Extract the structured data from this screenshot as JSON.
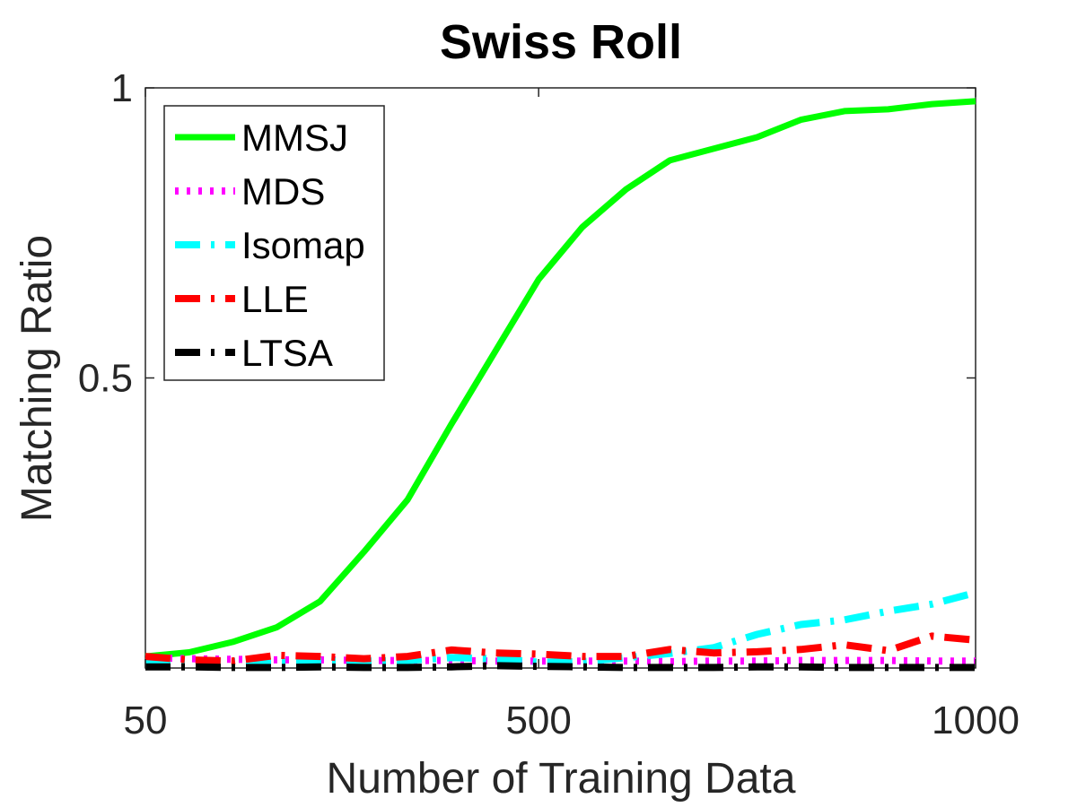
{
  "chart_data": {
    "type": "line",
    "title": "Swiss Roll",
    "xlabel": "Number of Training Data",
    "ylabel": "Matching Ratio",
    "xlim": [
      50,
      1000
    ],
    "ylim": [
      0,
      1
    ],
    "xticks": [
      50,
      500,
      1000
    ],
    "xtick_labels": [
      "50",
      "500",
      "1000"
    ],
    "yticks": [
      0.5,
      1
    ],
    "ytick_labels": [
      "0.5",
      "1"
    ],
    "legend_position": "top-left",
    "x": [
      50,
      100,
      150,
      200,
      250,
      300,
      350,
      400,
      450,
      500,
      550,
      600,
      650,
      700,
      750,
      800,
      850,
      900,
      950,
      1000
    ],
    "series": [
      {
        "name": "MMSJ",
        "color": "#00ff00",
        "style": "solid",
        "values": [
          0.02,
          0.027,
          0.045,
          0.07,
          0.115,
          0.2,
          0.29,
          0.42,
          0.545,
          0.67,
          0.76,
          0.825,
          0.875,
          0.895,
          0.915,
          0.945,
          0.96,
          0.963,
          0.972,
          0.977
        ]
      },
      {
        "name": "MDS",
        "color": "#ff00ff",
        "style": "dotted",
        "values": [
          0.018,
          0.016,
          0.015,
          0.014,
          0.014,
          0.013,
          0.013,
          0.013,
          0.012,
          0.012,
          0.012,
          0.012,
          0.011,
          0.012,
          0.012,
          0.013,
          0.013,
          0.013,
          0.012,
          0.012
        ]
      },
      {
        "name": "Isomap",
        "color": "#00ffff",
        "style": "dashdot",
        "values": [
          0.012,
          0.012,
          0.011,
          0.011,
          0.012,
          0.012,
          0.013,
          0.018,
          0.016,
          0.01,
          0.011,
          0.018,
          0.025,
          0.035,
          0.058,
          0.075,
          0.083,
          0.098,
          0.11,
          0.13
        ]
      },
      {
        "name": "LLE",
        "color": "#ff0000",
        "style": "dashdot",
        "values": [
          0.02,
          0.014,
          0.012,
          0.022,
          0.02,
          0.016,
          0.02,
          0.031,
          0.026,
          0.024,
          0.02,
          0.02,
          0.032,
          0.026,
          0.028,
          0.032,
          0.04,
          0.03,
          0.055,
          0.048
        ]
      },
      {
        "name": "LTSA",
        "color": "#000000",
        "style": "dashdot",
        "values": [
          0.002,
          0.002,
          0.001,
          0.001,
          0.002,
          0.001,
          0.001,
          0.002,
          0.004,
          0.003,
          0.002,
          0.001,
          0.001,
          0.001,
          0.002,
          0.002,
          0.001,
          0.001,
          0.001,
          0.001
        ]
      }
    ]
  }
}
